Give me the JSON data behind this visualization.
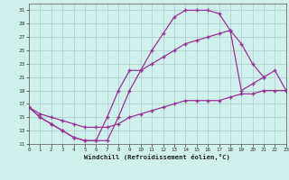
{
  "xlabel": "Windchill (Refroidissement éolien,°C)",
  "bg_color": "#cff0eb",
  "grid_color": "#aacccc",
  "line_color": "#993399",
  "ylim": [
    11,
    32
  ],
  "xlim": [
    0,
    23
  ],
  "yticks": [
    11,
    13,
    15,
    17,
    19,
    21,
    23,
    25,
    27,
    29,
    31
  ],
  "xticks": [
    0,
    1,
    2,
    3,
    4,
    5,
    6,
    7,
    8,
    9,
    10,
    11,
    12,
    13,
    14,
    15,
    16,
    17,
    18,
    19,
    20,
    21,
    22,
    23
  ],
  "series1_x": [
    0,
    1,
    2,
    3,
    4,
    5,
    6,
    7,
    8,
    9,
    10,
    11,
    12,
    13,
    14,
    15,
    16,
    17,
    18,
    19,
    20,
    21
  ],
  "series1_y": [
    16.5,
    15,
    14,
    13,
    12,
    11.5,
    11.5,
    11.5,
    15,
    19,
    22,
    25,
    27.5,
    30,
    31,
    31,
    31,
    30.5,
    28,
    26,
    23,
    21
  ],
  "series2_x": [
    0,
    1,
    2,
    3,
    4,
    5,
    6,
    7,
    8,
    9,
    10,
    11,
    12,
    13,
    14,
    15,
    16,
    17,
    18,
    19,
    20,
    21,
    22,
    23
  ],
  "series2_y": [
    16.5,
    15,
    14,
    13,
    12,
    11.5,
    11.5,
    15,
    19,
    22,
    22,
    23,
    24,
    25,
    26,
    26.5,
    27,
    27.5,
    28,
    19,
    20,
    21,
    22,
    19
  ],
  "series3_x": [
    0,
    1,
    2,
    3,
    4,
    5,
    6,
    7,
    8,
    9,
    10,
    11,
    12,
    13,
    14,
    15,
    16,
    17,
    18,
    19,
    20,
    21,
    22,
    23
  ],
  "series3_y": [
    16.5,
    15.5,
    15,
    14.5,
    14,
    13.5,
    13.5,
    13.5,
    14,
    15,
    15.5,
    16,
    16.5,
    17,
    17.5,
    17.5,
    17.5,
    17.5,
    18,
    18.5,
    18.5,
    19,
    19,
    19
  ]
}
